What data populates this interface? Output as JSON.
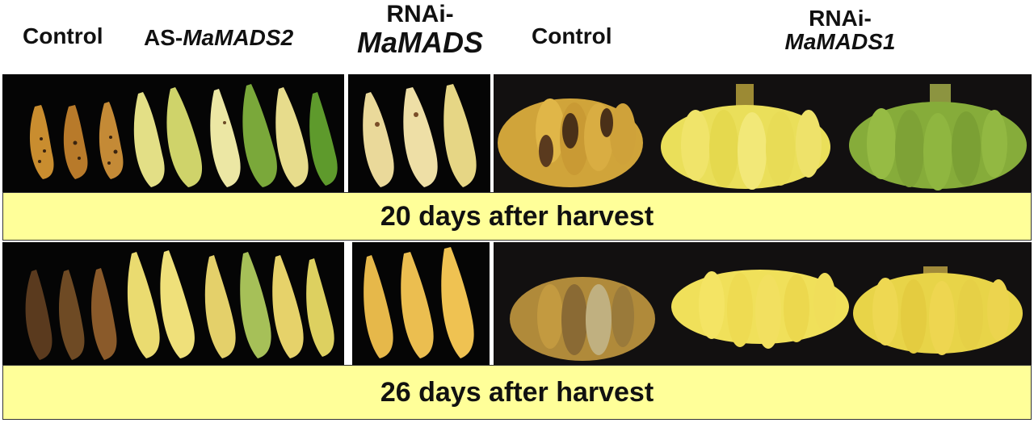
{
  "headers": {
    "control_left": "Control",
    "as_prefix": "AS-",
    "as_gene": "MaMADS2",
    "rnai_mid_prefix": "RNAi-",
    "rnai_mid_gene": "MaMADS",
    "control_right": "Control",
    "rnai_right_prefix": "RNAi-",
    "rnai_right_gene": "MaMADS1"
  },
  "banners": {
    "day20": "20 days after harvest",
    "day26": "26 days after harvest"
  },
  "colors": {
    "banner_bg": "#ffff99",
    "panel_bg": "#050505",
    "ripe_yellow": "#e8c84a",
    "green": "#6fa83a",
    "brown": "#6b4a26"
  }
}
